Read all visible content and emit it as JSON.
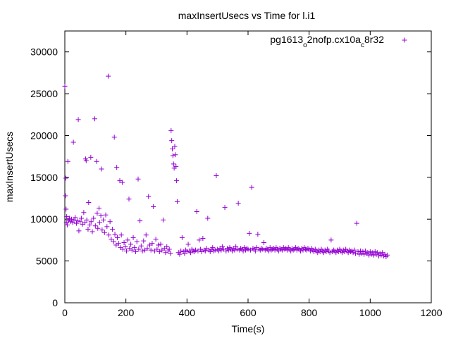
{
  "chart_data": {
    "type": "scatter",
    "title": "maxInsertUsecs vs Time for l.i1",
    "xlabel": "Time(s)",
    "ylabel": "maxInsertUsecs",
    "xlim": [
      0,
      1200
    ],
    "ylim": [
      0,
      32500
    ],
    "xticks": [
      0,
      200,
      400,
      600,
      800,
      1000,
      1200
    ],
    "yticks": [
      0,
      5000,
      10000,
      15000,
      20000,
      25000,
      30000
    ],
    "grid": false,
    "legend_position": "top-right",
    "marker": "plus",
    "series": [
      {
        "name_parts": [
          "pg1613",
          "o",
          "2nofp.cx10a",
          "c",
          "8r32"
        ],
        "color": "#9400d3",
        "points": [
          [
            0,
            25900
          ],
          [
            2,
            12800
          ],
          [
            3,
            14900
          ],
          [
            4,
            11200
          ],
          [
            5,
            9600
          ],
          [
            6,
            10300
          ],
          [
            8,
            9300
          ],
          [
            10,
            16900
          ],
          [
            12,
            9800
          ],
          [
            15,
            10100
          ],
          [
            18,
            9700
          ],
          [
            22,
            10000
          ],
          [
            26,
            9600
          ],
          [
            28,
            19200
          ],
          [
            30,
            9900
          ],
          [
            34,
            10200
          ],
          [
            38,
            9500
          ],
          [
            42,
            9800
          ],
          [
            44,
            21900
          ],
          [
            46,
            8600
          ],
          [
            50,
            9700
          ],
          [
            54,
            10100
          ],
          [
            58,
            9400
          ],
          [
            62,
            10800
          ],
          [
            66,
            9600
          ],
          [
            68,
            17200
          ],
          [
            70,
            17000
          ],
          [
            72,
            9900
          ],
          [
            76,
            8800
          ],
          [
            78,
            12000
          ],
          [
            82,
            9300
          ],
          [
            85,
            17400
          ],
          [
            86,
            9700
          ],
          [
            90,
            8500
          ],
          [
            94,
            10100
          ],
          [
            98,
            22000
          ],
          [
            100,
            9200
          ],
          [
            104,
            16900
          ],
          [
            106,
            10700
          ],
          [
            108,
            8900
          ],
          [
            112,
            11300
          ],
          [
            114,
            9600
          ],
          [
            118,
            10400
          ],
          [
            120,
            16000
          ],
          [
            122,
            8700
          ],
          [
            126,
            9900
          ],
          [
            130,
            8400
          ],
          [
            134,
            10500
          ],
          [
            138,
            9100
          ],
          [
            142,
            27100
          ],
          [
            144,
            8100
          ],
          [
            148,
            9700
          ],
          [
            152,
            7600
          ],
          [
            156,
            8800
          ],
          [
            160,
            7300
          ],
          [
            162,
            19800
          ],
          [
            164,
            8200
          ],
          [
            168,
            6900
          ],
          [
            170,
            16200
          ],
          [
            172,
            7800
          ],
          [
            176,
            7100
          ],
          [
            180,
            14600
          ],
          [
            182,
            6600
          ],
          [
            185,
            8100
          ],
          [
            188,
            14400
          ],
          [
            190,
            6400
          ],
          [
            194,
            7200
          ],
          [
            198,
            6700
          ],
          [
            202,
            6200
          ],
          [
            206,
            7500
          ],
          [
            210,
            12400
          ],
          [
            212,
            6500
          ],
          [
            216,
            7000
          ],
          [
            220,
            6300
          ],
          [
            224,
            7800
          ],
          [
            228,
            6600
          ],
          [
            232,
            6100
          ],
          [
            236,
            7300
          ],
          [
            240,
            14800
          ],
          [
            242,
            6400
          ],
          [
            246,
            9800
          ],
          [
            250,
            6800
          ],
          [
            254,
            6200
          ],
          [
            258,
            7400
          ],
          [
            262,
            6300
          ],
          [
            266,
            8100
          ],
          [
            270,
            6500
          ],
          [
            274,
            12700
          ],
          [
            278,
            6900
          ],
          [
            282,
            6300
          ],
          [
            286,
            7100
          ],
          [
            290,
            11500
          ],
          [
            294,
            6200
          ],
          [
            298,
            7600
          ],
          [
            302,
            6400
          ],
          [
            306,
            6900
          ],
          [
            310,
            6100
          ],
          [
            314,
            7000
          ],
          [
            318,
            6300
          ],
          [
            322,
            9900
          ],
          [
            326,
            6500
          ],
          [
            330,
            6000
          ],
          [
            334,
            6700
          ],
          [
            338,
            6200
          ],
          [
            342,
            6400
          ],
          [
            346,
            5900
          ],
          [
            348,
            20600
          ],
          [
            350,
            19400
          ],
          [
            352,
            18400
          ],
          [
            354,
            17600
          ],
          [
            356,
            16600
          ],
          [
            358,
            16100
          ],
          [
            360,
            18700
          ],
          [
            362,
            17700
          ],
          [
            364,
            16300
          ],
          [
            366,
            14600
          ],
          [
            368,
            12100
          ],
          [
            372,
            6000
          ],
          [
            376,
            5800
          ],
          [
            380,
            6200
          ],
          [
            384,
            7800
          ],
          [
            388,
            6100
          ],
          [
            392,
            5900
          ],
          [
            396,
            6300
          ],
          [
            400,
            6100
          ],
          [
            404,
            7000
          ],
          [
            408,
            6200
          ],
          [
            412,
            6000
          ],
          [
            416,
            6400
          ],
          [
            420,
            6200
          ],
          [
            424,
            6100
          ],
          [
            428,
            6300
          ],
          [
            432,
            10900
          ],
          [
            436,
            6200
          ],
          [
            440,
            7500
          ],
          [
            444,
            6400
          ],
          [
            448,
            6100
          ],
          [
            452,
            7700
          ],
          [
            456,
            6300
          ],
          [
            460,
            6200
          ],
          [
            464,
            6500
          ],
          [
            468,
            10100
          ],
          [
            472,
            6300
          ],
          [
            476,
            6100
          ],
          [
            480,
            6400
          ],
          [
            484,
            6600
          ],
          [
            488,
            6200
          ],
          [
            492,
            6300
          ],
          [
            496,
            15200
          ],
          [
            500,
            6400
          ],
          [
            504,
            6200
          ],
          [
            508,
            6500
          ],
          [
            512,
            6300
          ],
          [
            516,
            6700
          ],
          [
            520,
            6400
          ],
          [
            524,
            11400
          ],
          [
            528,
            6200
          ],
          [
            532,
            6500
          ],
          [
            536,
            6300
          ],
          [
            540,
            6600
          ],
          [
            544,
            6400
          ],
          [
            548,
            6200
          ],
          [
            552,
            6500
          ],
          [
            556,
            6300
          ],
          [
            560,
            6700
          ],
          [
            564,
            6400
          ],
          [
            568,
            11900
          ],
          [
            572,
            6300
          ],
          [
            576,
            6500
          ],
          [
            580,
            6400
          ],
          [
            584,
            6200
          ],
          [
            588,
            6600
          ],
          [
            592,
            6300
          ],
          [
            596,
            6500
          ],
          [
            600,
            6400
          ],
          [
            604,
            8300
          ],
          [
            608,
            6300
          ],
          [
            612,
            13800
          ],
          [
            616,
            6500
          ],
          [
            620,
            6400
          ],
          [
            624,
            6200
          ],
          [
            628,
            6600
          ],
          [
            632,
            8200
          ],
          [
            636,
            6400
          ],
          [
            640,
            6300
          ],
          [
            644,
            6500
          ],
          [
            648,
            6400
          ],
          [
            652,
            7200
          ],
          [
            656,
            6300
          ],
          [
            660,
            6500
          ],
          [
            664,
            6400
          ],
          [
            668,
            6200
          ],
          [
            672,
            6600
          ],
          [
            676,
            6300
          ],
          [
            680,
            6400
          ],
          [
            684,
            6500
          ],
          [
            688,
            6300
          ],
          [
            692,
            6600
          ],
          [
            696,
            6400
          ],
          [
            700,
            6200
          ],
          [
            704,
            6500
          ],
          [
            708,
            6400
          ],
          [
            712,
            6300
          ],
          [
            716,
            6600
          ],
          [
            720,
            6400
          ],
          [
            724,
            6500
          ],
          [
            728,
            6300
          ],
          [
            732,
            6600
          ],
          [
            736,
            6400
          ],
          [
            740,
            6200
          ],
          [
            744,
            6500
          ],
          [
            748,
            6300
          ],
          [
            752,
            6400
          ],
          [
            756,
            6600
          ],
          [
            760,
            6300
          ],
          [
            764,
            6500
          ],
          [
            768,
            6400
          ],
          [
            772,
            6200
          ],
          [
            776,
            6500
          ],
          [
            780,
            6300
          ],
          [
            784,
            6600
          ],
          [
            788,
            6400
          ],
          [
            792,
            6300
          ],
          [
            796,
            6500
          ],
          [
            800,
            6400
          ],
          [
            804,
            6200
          ],
          [
            808,
            6500
          ],
          [
            812,
            6300
          ],
          [
            816,
            6100
          ],
          [
            820,
            6400
          ],
          [
            824,
            6200
          ],
          [
            828,
            6000
          ],
          [
            832,
            6300
          ],
          [
            836,
            6100
          ],
          [
            840,
            6400
          ],
          [
            844,
            6200
          ],
          [
            848,
            6000
          ],
          [
            852,
            6300
          ],
          [
            856,
            6100
          ],
          [
            860,
            6400
          ],
          [
            864,
            6200
          ],
          [
            868,
            6000
          ],
          [
            872,
            7500
          ],
          [
            876,
            6100
          ],
          [
            880,
            6300
          ],
          [
            884,
            6200
          ],
          [
            888,
            6000
          ],
          [
            892,
            6300
          ],
          [
            896,
            6100
          ],
          [
            900,
            6400
          ],
          [
            904,
            6200
          ],
          [
            908,
            6000
          ],
          [
            912,
            6300
          ],
          [
            916,
            6100
          ],
          [
            920,
            6400
          ],
          [
            924,
            6200
          ],
          [
            928,
            6000
          ],
          [
            932,
            6300
          ],
          [
            936,
            6100
          ],
          [
            940,
            6200
          ],
          [
            944,
            6000
          ],
          [
            948,
            6300
          ],
          [
            952,
            5900
          ],
          [
            956,
            9500
          ],
          [
            960,
            6100
          ],
          [
            964,
            5800
          ],
          [
            968,
            6200
          ],
          [
            972,
            5900
          ],
          [
            976,
            6100
          ],
          [
            980,
            5800
          ],
          [
            984,
            6200
          ],
          [
            988,
            5900
          ],
          [
            992,
            6000
          ],
          [
            996,
            5700
          ],
          [
            1000,
            6100
          ],
          [
            1004,
            5800
          ],
          [
            1008,
            6000
          ],
          [
            1012,
            5700
          ],
          [
            1016,
            6100
          ],
          [
            1020,
            5800
          ],
          [
            1024,
            6000
          ],
          [
            1028,
            5600
          ],
          [
            1032,
            5900
          ],
          [
            1036,
            5700
          ],
          [
            1040,
            6000
          ],
          [
            1044,
            5600
          ],
          [
            1048,
            5800
          ],
          [
            1052,
            5500
          ],
          [
            1056,
            5700
          ]
        ]
      }
    ]
  }
}
